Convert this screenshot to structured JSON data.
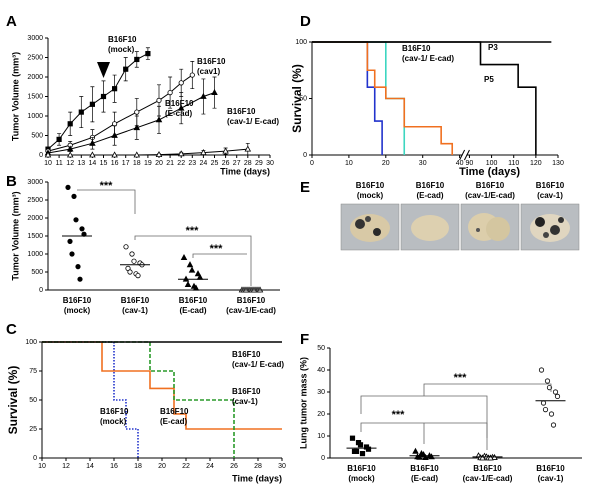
{
  "chart_data": [
    {
      "label": "A",
      "type": "line",
      "ylabel": "Tumor Volume (mm³)",
      "xlabel": "Time (days)",
      "xlim": [
        10,
        30
      ],
      "xticks": [
        10,
        11,
        12,
        13,
        14,
        15,
        16,
        17,
        18,
        19,
        20,
        21,
        22,
        23,
        24,
        25,
        26,
        27,
        28,
        29,
        30
      ],
      "ylim": [
        0,
        3000
      ],
      "yticks": [
        0,
        500,
        1000,
        1500,
        2000,
        2500,
        3000
      ],
      "series": [
        {
          "label": [
            "B16F10",
            "(mock)"
          ],
          "color": "#000000",
          "marker": "square",
          "filled": true,
          "x": [
            10,
            11,
            12,
            13,
            14,
            15,
            16,
            17,
            18,
            19
          ],
          "values": [
            150,
            400,
            800,
            1100,
            1300,
            1500,
            1700,
            2200,
            2450,
            2600
          ],
          "errors": [
            50,
            150,
            300,
            400,
            450,
            400,
            350,
            300,
            200,
            150
          ]
        },
        {
          "label": [
            "B16F10",
            "(cav1)"
          ],
          "color": "#000000",
          "marker": "circle",
          "filled": false,
          "x": [
            10,
            12,
            14,
            16,
            18,
            20,
            21,
            22,
            23
          ],
          "values": [
            100,
            250,
            450,
            800,
            1100,
            1400,
            1600,
            1850,
            2050
          ],
          "errors": [
            30,
            100,
            200,
            300,
            350,
            400,
            400,
            350,
            350
          ]
        },
        {
          "label": [
            "B16F10",
            "(E-cad)"
          ],
          "color": "#000000",
          "marker": "triangle",
          "filled": true,
          "x": [
            10,
            12,
            14,
            16,
            18,
            20,
            22,
            24,
            25
          ],
          "values": [
            50,
            150,
            300,
            500,
            700,
            900,
            1200,
            1500,
            1600
          ],
          "errors": [
            20,
            60,
            150,
            250,
            300,
            350,
            400,
            450,
            400
          ]
        },
        {
          "label": [
            "B16F10",
            "(cav-1/ E-cad)"
          ],
          "color": "#000000",
          "marker": "triangle",
          "filled": false,
          "x": [
            10,
            12,
            14,
            16,
            18,
            20,
            22,
            24,
            26,
            28
          ],
          "values": [
            0,
            0,
            0,
            0,
            0,
            10,
            30,
            60,
            100,
            150
          ],
          "errors": [
            0,
            0,
            0,
            0,
            0,
            20,
            40,
            60,
            80,
            150
          ]
        }
      ]
    },
    {
      "label": "B",
      "type": "dot",
      "ylabel": "Tumor Volume (mm³)",
      "ylim": [
        0,
        3000
      ],
      "yticks": [
        0,
        500,
        1000,
        1500,
        2000,
        2500,
        3000
      ],
      "categories": [
        [
          "B16F10",
          "(mock)"
        ],
        [
          "B16F10",
          "(cav-1)"
        ],
        [
          "B16F10",
          "(E-cad)"
        ],
        [
          "B16F10",
          "(cav-1/E-cad)"
        ]
      ],
      "markers": [
        {
          "shape": "circle",
          "filled": true
        },
        {
          "shape": "circle",
          "filled": false
        },
        {
          "shape": "triangle",
          "filled": true
        },
        {
          "shape": "triangle",
          "filled": false
        }
      ],
      "values": [
        [
          2850,
          2600,
          1950,
          1700,
          1550,
          1350,
          1000,
          650,
          300
        ],
        [
          1200,
          1000,
          800,
          750,
          700,
          600,
          500,
          450,
          400
        ],
        [
          900,
          700,
          550,
          450,
          350,
          300,
          150,
          100,
          50
        ],
        [
          0,
          0,
          0,
          0,
          0,
          0,
          0,
          0,
          0,
          0
        ]
      ],
      "means": [
        1500,
        700,
        300,
        0
      ],
      "annotations": [
        "***",
        "***",
        "***"
      ]
    },
    {
      "label": "C",
      "type": "step",
      "ylabel": "Survival (%)",
      "xlabel": "Time (days)",
      "xlim": [
        10,
        30
      ],
      "xticks": [
        10,
        12,
        14,
        16,
        18,
        20,
        22,
        24,
        26,
        28,
        30
      ],
      "ylim": [
        0,
        100
      ],
      "yticks": [
        0,
        25,
        50,
        75,
        100
      ],
      "series": [
        {
          "label": [
            "B16F10",
            "(mock)"
          ],
          "color": "#2233cc",
          "style": "dotted",
          "x": [
            10,
            16,
            17,
            18
          ],
          "values": [
            100,
            50,
            25,
            0
          ]
        },
        {
          "label": [
            "B16F10",
            "(E-cad)"
          ],
          "color": "#f07020",
          "style": "solid",
          "x": [
            10,
            15,
            19,
            21,
            22,
            30
          ],
          "values": [
            100,
            75,
            60,
            38,
            25,
            25
          ]
        },
        {
          "label": [
            "B16F10",
            "(cav-1)"
          ],
          "color": "#2a9a2a",
          "style": "dashed",
          "x": [
            10,
            19,
            21,
            26
          ],
          "values": [
            100,
            75,
            50,
            0
          ]
        },
        {
          "label": [
            "B16F10",
            "(cav-1/ E-cad)"
          ],
          "color": "#000000",
          "style": "solid",
          "x": [
            10,
            30
          ],
          "values": [
            100,
            100
          ]
        }
      ]
    },
    {
      "label": "D",
      "type": "step",
      "ylabel": "Survival (%)",
      "xlabel": "Time (days)",
      "xlim": [
        0,
        130
      ],
      "xbreak": [
        40,
        90
      ],
      "xticks": [
        0,
        10,
        20,
        30,
        40,
        90,
        100,
        110,
        120,
        130
      ],
      "ylim": [
        0,
        100
      ],
      "yticks": [
        0,
        50,
        100
      ],
      "series": [
        {
          "color": "#2233cc",
          "style": "solid",
          "x": [
            0,
            15,
            17,
            19
          ],
          "values": [
            100,
            60,
            30,
            0
          ]
        },
        {
          "color": "#3dd6c0",
          "style": "solid",
          "x": [
            0,
            20,
            25
          ],
          "values": [
            100,
            50,
            0
          ]
        },
        {
          "color": "#f07020",
          "style": "solid",
          "x": [
            0,
            15,
            17,
            20,
            25,
            30,
            35,
            38
          ],
          "values": [
            100,
            75,
            60,
            50,
            25,
            25,
            10,
            0
          ]
        },
        {
          "label": [
            "P3"
          ],
          "color": "#000000",
          "style": "solid",
          "x": [
            0,
            127
          ],
          "values": [
            100,
            100
          ]
        },
        {
          "label": [
            "P5"
          ],
          "color": "#000000",
          "style": "solid",
          "x": [
            0,
            95,
            112,
            120
          ],
          "values": [
            100,
            80,
            60,
            0
          ]
        }
      ],
      "annotations": [
        "B16F10",
        "(cav-1/ E-cad)"
      ]
    },
    {
      "label": "E",
      "type": "image",
      "categories": [
        [
          "B16F10",
          "(mock)"
        ],
        [
          "B16F10",
          "(E-cad)"
        ],
        [
          "B16F10",
          "(cav-1/E-cad)"
        ],
        [
          "B16F10",
          "(cav-1)"
        ]
      ]
    },
    {
      "label": "F",
      "type": "dot",
      "ylabel": "Lung tumor mass (%)",
      "ylim": [
        0,
        50
      ],
      "yticks": [
        0,
        10,
        20,
        30,
        40,
        50
      ],
      "categories": [
        [
          "B16F10",
          "(mock)"
        ],
        [
          "B16F10",
          "(E-cad)"
        ],
        [
          "B16F10",
          "(cav-1/E-cad)"
        ],
        [
          "B16F10",
          "(cav-1)"
        ]
      ],
      "markers": [
        {
          "shape": "square",
          "filled": true
        },
        {
          "shape": "triangle",
          "filled": true
        },
        {
          "shape": "triangle",
          "filled": false
        },
        {
          "shape": "circle",
          "filled": false
        }
      ],
      "values": [
        [
          9,
          7,
          6,
          5,
          4,
          3,
          3,
          2
        ],
        [
          3,
          2,
          1.5,
          1,
          0.5,
          0.5,
          0.3,
          0.2
        ],
        [
          1,
          0.8,
          0.5,
          0.3,
          0.2,
          0.1,
          0,
          0,
          0
        ],
        [
          40,
          35,
          32,
          30,
          28,
          25,
          22,
          20,
          15
        ]
      ],
      "means": [
        4.5,
        1,
        0.5,
        26
      ],
      "annotations": [
        "***",
        "***"
      ]
    }
  ]
}
